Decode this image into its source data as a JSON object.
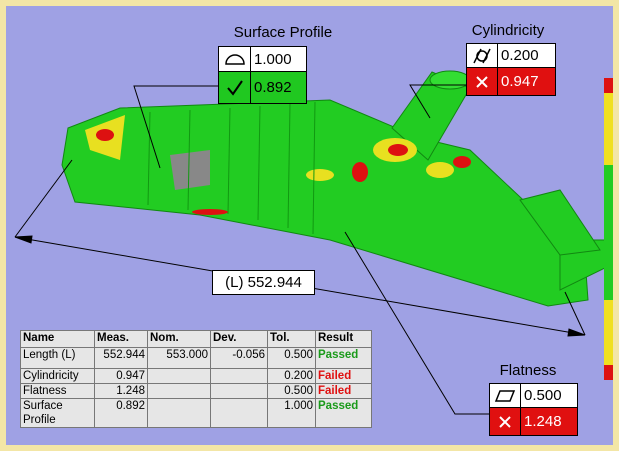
{
  "callouts": {
    "surface_profile": {
      "title": "Surface Profile",
      "tolerance": "1.000",
      "measured": "0.892"
    },
    "cylindricity": {
      "title": "Cylindricity",
      "tolerance": "0.200",
      "measured": "0.947"
    },
    "flatness": {
      "title": "Flatness",
      "tolerance": "0.500",
      "measured": "1.248"
    }
  },
  "dimension": "(L) 552.944",
  "table": {
    "header": [
      "Name",
      "Meas.",
      "Nom.",
      "Dev.",
      "Tol.",
      "Result"
    ],
    "rows": [
      {
        "name": "Length (L)",
        "meas": "552.944",
        "nom": "553.000",
        "dev": "-0.056",
        "tol": "0.500",
        "result": "Passed"
      },
      {
        "name": "Cylindricity",
        "meas": "0.947",
        "tol": "0.200",
        "result": "Failed"
      },
      {
        "name": "Flatness",
        "meas": "1.248",
        "tol": "0.500",
        "result": "Failed"
      },
      {
        "name": "Surface Profile",
        "meas": "0.892",
        "tol": "1.000",
        "result": "Passed"
      }
    ]
  }
}
